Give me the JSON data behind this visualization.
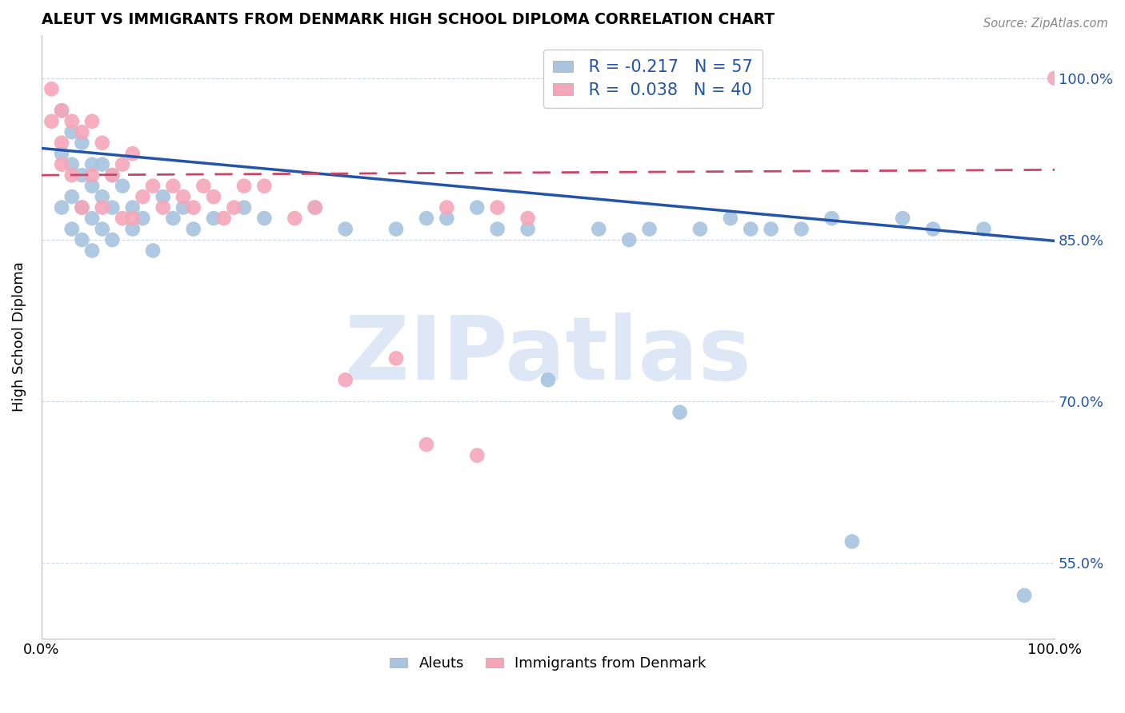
{
  "title": "ALEUT VS IMMIGRANTS FROM DENMARK HIGH SCHOOL DIPLOMA CORRELATION CHART",
  "source_text": "Source: ZipAtlas.com",
  "ylabel": "High School Diploma",
  "xlim": [
    0.0,
    1.0
  ],
  "ylim": [
    0.48,
    1.04
  ],
  "yticks": [
    0.55,
    0.7,
    0.85,
    1.0
  ],
  "ytick_labels": [
    "55.0%",
    "70.0%",
    "85.0%",
    "100.0%"
  ],
  "xticks": [
    0.0,
    0.25,
    0.5,
    0.75,
    1.0
  ],
  "xtick_labels": [
    "0.0%",
    "",
    "",
    "",
    "100.0%"
  ],
  "aleuts_color": "#a8c4e0",
  "denmark_color": "#f4a7b9",
  "aleuts_line_color": "#2255aa",
  "denmark_line_color": "#cc4466",
  "background_color": "#ffffff",
  "watermark": "ZIPatlas",
  "watermark_color": "#c8d8f0",
  "aleuts_x": [
    0.02,
    0.02,
    0.02,
    0.03,
    0.03,
    0.03,
    0.03,
    0.04,
    0.04,
    0.04,
    0.04,
    0.05,
    0.05,
    0.05,
    0.05,
    0.06,
    0.06,
    0.06,
    0.07,
    0.07,
    0.07,
    0.08,
    0.09,
    0.09,
    0.1,
    0.11,
    0.12,
    0.13,
    0.14,
    0.15,
    0.17,
    0.2,
    0.22,
    0.27,
    0.3,
    0.35,
    0.38,
    0.4,
    0.43,
    0.45,
    0.48,
    0.5,
    0.55,
    0.58,
    0.6,
    0.63,
    0.65,
    0.68,
    0.7,
    0.72,
    0.75,
    0.78,
    0.8,
    0.85,
    0.88,
    0.93,
    0.97
  ],
  "aleuts_y": [
    0.97,
    0.93,
    0.88,
    0.95,
    0.92,
    0.89,
    0.86,
    0.94,
    0.91,
    0.88,
    0.85,
    0.92,
    0.9,
    0.87,
    0.84,
    0.92,
    0.89,
    0.86,
    0.91,
    0.88,
    0.85,
    0.9,
    0.88,
    0.86,
    0.87,
    0.84,
    0.89,
    0.87,
    0.88,
    0.86,
    0.87,
    0.88,
    0.87,
    0.88,
    0.86,
    0.86,
    0.87,
    0.87,
    0.88,
    0.86,
    0.86,
    0.72,
    0.86,
    0.85,
    0.86,
    0.69,
    0.86,
    0.87,
    0.86,
    0.86,
    0.86,
    0.87,
    0.57,
    0.87,
    0.86,
    0.86,
    0.52
  ],
  "denmark_x": [
    0.01,
    0.01,
    0.02,
    0.02,
    0.02,
    0.03,
    0.03,
    0.04,
    0.04,
    0.05,
    0.05,
    0.06,
    0.06,
    0.07,
    0.08,
    0.08,
    0.09,
    0.09,
    0.1,
    0.11,
    0.12,
    0.13,
    0.14,
    0.15,
    0.16,
    0.17,
    0.18,
    0.19,
    0.2,
    0.22,
    0.25,
    0.27,
    0.3,
    0.35,
    0.38,
    0.4,
    0.43,
    0.45,
    0.48,
    1.0
  ],
  "denmark_y": [
    0.99,
    0.96,
    0.97,
    0.94,
    0.92,
    0.96,
    0.91,
    0.95,
    0.88,
    0.96,
    0.91,
    0.94,
    0.88,
    0.91,
    0.92,
    0.87,
    0.93,
    0.87,
    0.89,
    0.9,
    0.88,
    0.9,
    0.89,
    0.88,
    0.9,
    0.89,
    0.87,
    0.88,
    0.9,
    0.9,
    0.87,
    0.88,
    0.72,
    0.74,
    0.66,
    0.88,
    0.65,
    0.88,
    0.87,
    1.0
  ],
  "aleuts_trendline_x0": 0.0,
  "aleuts_trendline_x1": 1.0,
  "aleuts_trendline_y0": 0.935,
  "aleuts_trendline_y1": 0.849,
  "denmark_trendline_x0": 0.0,
  "denmark_trendline_x1": 1.0,
  "denmark_trendline_y0": 0.91,
  "denmark_trendline_y1": 0.915
}
